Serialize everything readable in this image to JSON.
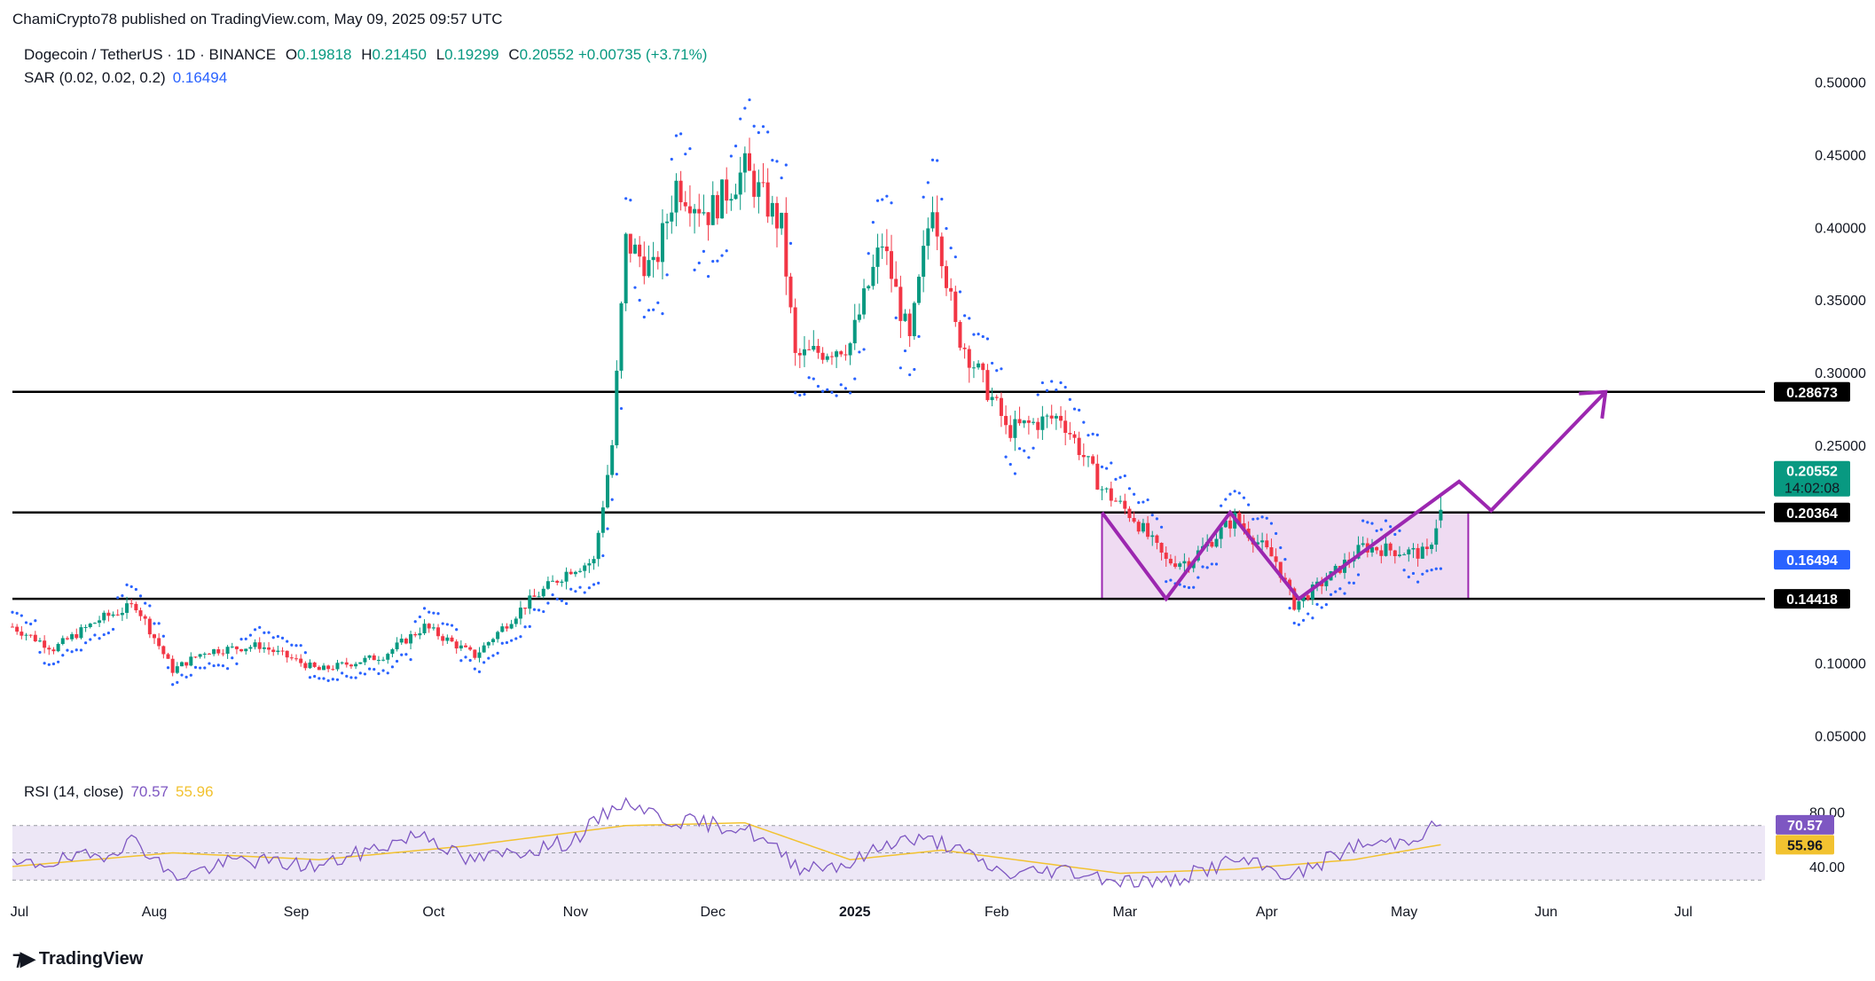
{
  "publisher": "ChamiCrypto78 published on TradingView.com, May 09, 2025 09:57 UTC",
  "legend": {
    "symbol": "Dogecoin / TetherUS · 1D · BINANCE",
    "open_key": "O",
    "open": "0.19818",
    "high_key": "H",
    "high": "0.21450",
    "low_key": "L",
    "low": "0.19299",
    "close_key": "C",
    "close": "0.20552",
    "change": "+0.00735 (+3.71%)",
    "sar_label": "SAR (0.02, 0.02, 0.2)",
    "sar_value": "0.16494",
    "rsi_label": "RSI (14, close)",
    "rsi_value": "70.57",
    "rsi_ma_value": "55.96"
  },
  "footer_logo_text": "TradingView",
  "colors": {
    "up": "#089981",
    "down": "#f23645",
    "sar": "#2962ff",
    "zone_fill": "#e1bee7",
    "zone_stroke": "#9c27b0",
    "path": "#9c27b0",
    "rsi": "#7e57c2",
    "rsi_ma": "#f2c230",
    "rsi_band": "#ede7f6",
    "hline": "#000000"
  },
  "chart_data": [
    {
      "type": "candlestick",
      "title": "Dogecoin / TetherUS · 1D · BINANCE",
      "ylim": [
        0.03,
        0.52
      ],
      "y_scale": "linear",
      "yticks": [
        "0.50000",
        "0.45000",
        "0.40000",
        "0.35000",
        "0.30000",
        "0.25000",
        "0.10000",
        "0.05000"
      ],
      "xticks": [
        "Jul",
        "Aug",
        "Sep",
        "Oct",
        "Nov",
        "Dec",
        "2025",
        "Feb",
        "Mar",
        "Apr",
        "May",
        "Jun",
        "Jul"
      ],
      "close_path": [
        [
          "2024-07-01",
          0.125
        ],
        [
          "2024-07-10",
          0.11
        ],
        [
          "2024-07-20",
          0.13
        ],
        [
          "2024-07-28",
          0.14
        ],
        [
          "2024-08-05",
          0.095
        ],
        [
          "2024-08-12",
          0.108
        ],
        [
          "2024-08-24",
          0.112
        ],
        [
          "2024-09-06",
          0.095
        ],
        [
          "2024-09-20",
          0.105
        ],
        [
          "2024-09-29",
          0.125
        ],
        [
          "2024-10-10",
          0.105
        ],
        [
          "2024-10-21",
          0.14
        ],
        [
          "2024-10-31",
          0.165
        ],
        [
          "2024-11-05",
          0.17
        ],
        [
          "2024-11-09",
          0.25
        ],
        [
          "2024-11-12",
          0.39
        ],
        [
          "2024-11-18",
          0.37
        ],
        [
          "2024-11-23",
          0.43
        ],
        [
          "2024-11-30",
          0.41
        ],
        [
          "2024-12-08",
          0.44
        ],
        [
          "2024-12-16",
          0.4
        ],
        [
          "2024-12-19",
          0.31
        ],
        [
          "2024-12-31",
          0.32
        ],
        [
          "2025-01-07",
          0.39
        ],
        [
          "2025-01-13",
          0.32
        ],
        [
          "2025-01-18",
          0.42
        ],
        [
          "2025-01-23",
          0.33
        ],
        [
          "2025-02-02",
          0.27
        ],
        [
          "2025-02-03",
          0.26
        ],
        [
          "2025-02-15",
          0.27
        ],
        [
          "2025-02-24",
          0.22
        ],
        [
          "2025-03-03",
          0.2
        ],
        [
          "2025-03-10",
          0.17
        ],
        [
          "2025-03-15",
          0.17
        ],
        [
          "2025-03-25",
          0.2
        ],
        [
          "2025-04-03",
          0.17
        ],
        [
          "2025-04-07",
          0.14
        ],
        [
          "2025-04-15",
          0.16
        ],
        [
          "2025-04-22",
          0.18
        ],
        [
          "2025-05-06",
          0.175
        ],
        [
          "2025-05-09",
          0.20552
        ]
      ],
      "parabolic_sar_last": 0.16494,
      "horizontal_levels": [
        0.28673,
        0.20364,
        0.14418
      ],
      "price_tags": [
        {
          "label": "0.28673",
          "value": 0.28673,
          "bg": "#000000",
          "fg": "#ffffff"
        },
        {
          "label": "0.20552",
          "value": 0.20552,
          "bg": "#089981",
          "fg": "#ffffff",
          "sub": "14:02:08"
        },
        {
          "label": "0.20364",
          "value": 0.20364,
          "bg": "#000000",
          "fg": "#ffffff"
        },
        {
          "label": "0.16494",
          "value": 0.16494,
          "bg": "#2962ff",
          "fg": "#ffffff"
        },
        {
          "label": "0.14418",
          "value": 0.14418,
          "bg": "#000000",
          "fg": "#ffffff"
        }
      ],
      "range_box": {
        "from": "2025-02-24",
        "to": "2025-05-15",
        "low": 0.14418,
        "high": 0.20364
      },
      "projection_path": [
        [
          "2025-02-24",
          0.20364
        ],
        [
          "2025-03-10",
          0.14418
        ],
        [
          "2025-03-24",
          0.20364
        ],
        [
          "2025-04-08",
          0.14418
        ],
        [
          "2025-05-13",
          0.225
        ],
        [
          "2025-05-20",
          0.205
        ],
        [
          "2025-06-14",
          0.28673
        ]
      ]
    },
    {
      "type": "line",
      "title": "RSI (14, close)",
      "ylim": [
        25,
        90
      ],
      "yticks": [
        "80.00",
        "40.00"
      ],
      "bands": [
        70,
        50,
        30
      ],
      "series": [
        {
          "name": "RSI",
          "last": 70.57,
          "points": [
            [
              "2024-07-01",
              40
            ],
            [
              "2024-07-20",
              48
            ],
            [
              "2024-07-28",
              60
            ],
            [
              "2024-08-05",
              32
            ],
            [
              "2024-08-20",
              45
            ],
            [
              "2024-09-06",
              40
            ],
            [
              "2024-09-29",
              65
            ],
            [
              "2024-10-08",
              44
            ],
            [
              "2024-10-31",
              58
            ],
            [
              "2024-11-12",
              90
            ],
            [
              "2024-11-20",
              75
            ],
            [
              "2024-12-08",
              68
            ],
            [
              "2024-12-20",
              40
            ],
            [
              "2024-12-31",
              42
            ],
            [
              "2025-01-10",
              60
            ],
            [
              "2025-01-20",
              58
            ],
            [
              "2025-02-03",
              34
            ],
            [
              "2025-02-15",
              38
            ],
            [
              "2025-02-28",
              30
            ],
            [
              "2025-03-10",
              28
            ],
            [
              "2025-03-25",
              45
            ],
            [
              "2025-04-07",
              33
            ],
            [
              "2025-04-20",
              55
            ],
            [
              "2025-04-30",
              58
            ],
            [
              "2025-05-09",
              70.57
            ]
          ]
        },
        {
          "name": "RSI-based MA",
          "last": 55.96,
          "points": [
            [
              "2024-07-01",
              40
            ],
            [
              "2024-08-05",
              50
            ],
            [
              "2024-09-06",
              45
            ],
            [
              "2024-10-08",
              55
            ],
            [
              "2024-11-12",
              70
            ],
            [
              "2024-12-08",
              72
            ],
            [
              "2024-12-31",
              45
            ],
            [
              "2025-01-20",
              52
            ],
            [
              "2025-02-28",
              35
            ],
            [
              "2025-03-25",
              38
            ],
            [
              "2025-04-20",
              45
            ],
            [
              "2025-05-09",
              55.96
            ]
          ]
        }
      ]
    }
  ]
}
